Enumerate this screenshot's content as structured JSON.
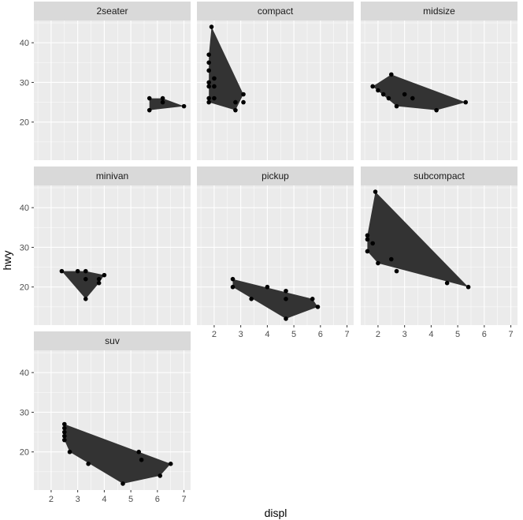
{
  "chart_data": {
    "type": "scatter",
    "xlabel": "displ",
    "ylabel": "hwy",
    "xlim": [
      1.35,
      7.25
    ],
    "ylim": [
      10.4,
      45.6
    ],
    "x_ticks": [
      2,
      3,
      4,
      5,
      6,
      7
    ],
    "y_ticks": [
      20,
      30,
      40
    ],
    "grid": true,
    "legend": "none",
    "colors": {
      "panel_bg": "#ebebeb",
      "grid_major": "#ffffff",
      "strip_bg": "#d9d9d9",
      "hull_fill": "#333333",
      "point": "#000000",
      "tick": "#333333"
    },
    "panels": [
      {
        "name": "2seater",
        "points": [
          [
            5.7,
            26
          ],
          [
            5.7,
            23
          ],
          [
            6.2,
            26
          ],
          [
            6.2,
            25
          ],
          [
            7.0,
            24
          ]
        ],
        "hull": [
          [
            5.7,
            23
          ],
          [
            7.0,
            24
          ],
          [
            6.2,
            26
          ],
          [
            5.7,
            26
          ]
        ]
      },
      {
        "name": "compact",
        "points": [
          [
            1.8,
            25
          ],
          [
            1.8,
            26
          ],
          [
            1.8,
            29
          ],
          [
            1.8,
            30
          ],
          [
            1.8,
            33
          ],
          [
            1.8,
            35
          ],
          [
            1.8,
            37
          ],
          [
            1.9,
            44
          ],
          [
            2.0,
            26
          ],
          [
            2.0,
            29
          ],
          [
            2.0,
            31
          ],
          [
            2.8,
            23
          ],
          [
            2.8,
            25
          ],
          [
            3.1,
            27
          ],
          [
            3.1,
            25
          ]
        ],
        "hull": [
          [
            1.8,
            25
          ],
          [
            2.8,
            23
          ],
          [
            3.1,
            27
          ],
          [
            1.9,
            44
          ],
          [
            1.8,
            37
          ]
        ]
      },
      {
        "name": "midsize",
        "points": [
          [
            1.8,
            29
          ],
          [
            2.0,
            28
          ],
          [
            2.2,
            27
          ],
          [
            2.4,
            26
          ],
          [
            2.5,
            32
          ],
          [
            2.7,
            24
          ],
          [
            3.0,
            27
          ],
          [
            3.3,
            26
          ],
          [
            4.2,
            23
          ],
          [
            5.3,
            25
          ]
        ],
        "hull": [
          [
            1.8,
            29
          ],
          [
            2.7,
            24
          ],
          [
            4.2,
            23
          ],
          [
            5.3,
            25
          ],
          [
            2.5,
            32
          ]
        ]
      },
      {
        "name": "minivan",
        "points": [
          [
            2.4,
            24
          ],
          [
            3.0,
            24
          ],
          [
            3.3,
            24
          ],
          [
            3.3,
            17
          ],
          [
            3.3,
            22
          ],
          [
            3.8,
            21
          ],
          [
            3.8,
            22
          ],
          [
            4.0,
            23
          ]
        ],
        "hull": [
          [
            2.4,
            24
          ],
          [
            3.3,
            17
          ],
          [
            3.8,
            21
          ],
          [
            4.0,
            23
          ],
          [
            3.3,
            24
          ]
        ]
      },
      {
        "name": "pickup",
        "points": [
          [
            2.7,
            20
          ],
          [
            2.7,
            22
          ],
          [
            3.4,
            17
          ],
          [
            4.0,
            20
          ],
          [
            4.7,
            12
          ],
          [
            4.7,
            17
          ],
          [
            4.7,
            19
          ],
          [
            5.7,
            17
          ],
          [
            5.9,
            15
          ]
        ],
        "hull": [
          [
            2.7,
            20
          ],
          [
            4.7,
            12
          ],
          [
            5.9,
            15
          ],
          [
            5.7,
            17
          ],
          [
            2.7,
            22
          ]
        ]
      },
      {
        "name": "subcompact",
        "points": [
          [
            1.6,
            29
          ],
          [
            1.6,
            32
          ],
          [
            1.6,
            33
          ],
          [
            1.8,
            31
          ],
          [
            1.9,
            44
          ],
          [
            2.0,
            26
          ],
          [
            2.5,
            27
          ],
          [
            2.7,
            24
          ],
          [
            4.6,
            21
          ],
          [
            5.4,
            20
          ]
        ],
        "hull": [
          [
            1.6,
            29
          ],
          [
            2.0,
            26
          ],
          [
            5.4,
            20
          ],
          [
            1.9,
            44
          ],
          [
            1.6,
            33
          ]
        ]
      },
      {
        "name": "suv",
        "points": [
          [
            2.5,
            27
          ],
          [
            2.5,
            26
          ],
          [
            2.5,
            25
          ],
          [
            2.5,
            24
          ],
          [
            2.5,
            23
          ],
          [
            2.7,
            20
          ],
          [
            3.4,
            17
          ],
          [
            4.7,
            12
          ],
          [
            5.3,
            20
          ],
          [
            5.4,
            18
          ],
          [
            6.1,
            14
          ],
          [
            6.5,
            17
          ]
        ],
        "hull": [
          [
            2.5,
            23
          ],
          [
            2.7,
            20
          ],
          [
            4.7,
            12
          ],
          [
            6.1,
            14
          ],
          [
            6.5,
            17
          ],
          [
            2.5,
            27
          ]
        ]
      }
    ]
  }
}
